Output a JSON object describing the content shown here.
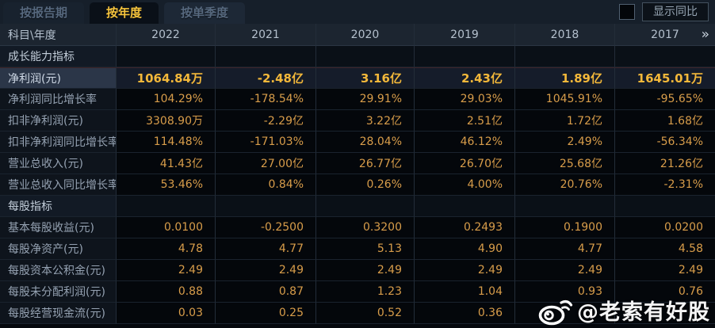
{
  "tabs": [
    {
      "id": "by-report-period",
      "label": "按报告期",
      "active": false
    },
    {
      "id": "by-year",
      "label": "按年度",
      "active": true
    },
    {
      "id": "by-quarter",
      "label": "按单季度",
      "active": false
    }
  ],
  "controls": {
    "show_yoy_label": "显示同比",
    "show_yoy_checked": false
  },
  "table": {
    "corner_label": "科目\\年度",
    "years": [
      "2022",
      "2021",
      "2020",
      "2019",
      "2018",
      "2017"
    ],
    "more_label": "»",
    "rows": [
      {
        "type": "section",
        "label": "成长能力指标"
      },
      {
        "type": "data",
        "label": "净利润(元)",
        "highlight": true,
        "values": [
          "1064.84万",
          "-2.48亿",
          "3.16亿",
          "2.43亿",
          "1.89亿",
          "1645.01万"
        ]
      },
      {
        "type": "data",
        "label": "净利润同比增长率",
        "values": [
          "104.29%",
          "-178.54%",
          "29.91%",
          "29.03%",
          "1045.91%",
          "-95.65%"
        ]
      },
      {
        "type": "data",
        "label": "扣非净利润(元)",
        "values": [
          "3308.90万",
          "-2.29亿",
          "3.22亿",
          "2.51亿",
          "1.72亿",
          "1.68亿"
        ]
      },
      {
        "type": "data",
        "label": "扣非净利润同比增长率",
        "values": [
          "114.48%",
          "-171.03%",
          "28.04%",
          "46.12%",
          "2.49%",
          "-56.34%"
        ]
      },
      {
        "type": "data",
        "label": "营业总收入(元)",
        "values": [
          "41.43亿",
          "27.00亿",
          "26.77亿",
          "26.70亿",
          "25.68亿",
          "21.26亿"
        ]
      },
      {
        "type": "data",
        "label": "营业总收入同比增长率",
        "values": [
          "53.46%",
          "0.84%",
          "0.26%",
          "4.00%",
          "20.76%",
          "-2.31%"
        ]
      },
      {
        "type": "section",
        "label": "每股指标"
      },
      {
        "type": "data",
        "label": "基本每股收益(元)",
        "values": [
          "0.0100",
          "-0.2500",
          "0.3200",
          "0.2493",
          "0.1900",
          "0.0200"
        ]
      },
      {
        "type": "data",
        "label": "每股净资产(元)",
        "values": [
          "4.78",
          "4.77",
          "5.13",
          "4.90",
          "4.77",
          "4.58"
        ]
      },
      {
        "type": "data",
        "label": "每股资本公积金(元)",
        "values": [
          "2.49",
          "2.49",
          "2.49",
          "2.49",
          "2.49",
          "2.49"
        ]
      },
      {
        "type": "data",
        "label": "每股未分配利润(元)",
        "values": [
          "0.88",
          "0.87",
          "1.23",
          "1.04",
          "0.93",
          "0.76"
        ]
      },
      {
        "type": "data",
        "label": "每股经营现金流(元)",
        "values": [
          "0.03",
          "0.25",
          "0.52",
          "0.36",
          "",
          ""
        ]
      }
    ]
  },
  "watermark": {
    "icon": "weibo-icon",
    "text": "@老索有好股"
  },
  "colors": {
    "accent_gold": "#f7c53d",
    "value_gold": "#d89d4a",
    "highlight_value": "#f3b83a",
    "header_bg": "#1c2530",
    "tabbar_bg": "#161f2a",
    "page_bg": "#05080d"
  }
}
